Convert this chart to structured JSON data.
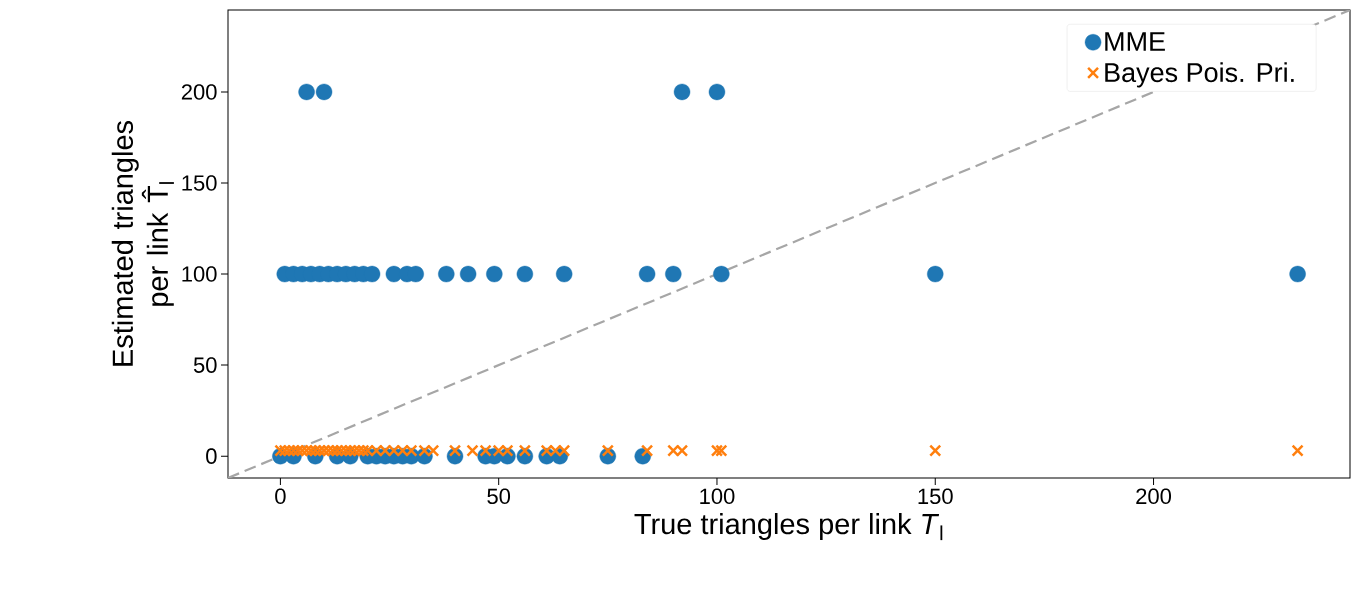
{
  "chart_data": {
    "type": "scatter",
    "xlabel": "True triangles per link *T*$_{l}$",
    "ylabel": "Estimated triangles per link T̂$_{l}$",
    "xlim": [
      -12,
      245
    ],
    "ylim": [
      -12,
      245
    ],
    "xticks": [
      0,
      50,
      100,
      150,
      200
    ],
    "yticks": [
      0,
      50,
      100,
      150,
      200
    ],
    "legend": "top right",
    "grid": false,
    "series": [
      {
        "type": "line",
        "color": "#a6a6a6",
        "line_style": "dashed",
        "marker": "none",
        "x": [
          -12,
          245
        ],
        "values": [
          -12,
          245
        ]
      },
      {
        "name": "MME",
        "color": "#1f77b4",
        "marker": "circle",
        "x": [
          6,
          10,
          92,
          100,
          1,
          3,
          5,
          7,
          9,
          11,
          13,
          15,
          17,
          19,
          21,
          26,
          29,
          31,
          38,
          43,
          49,
          56,
          65,
          84,
          90,
          101,
          150,
          233,
          0,
          3,
          8,
          13,
          16,
          20,
          22,
          24,
          26,
          28,
          30,
          33,
          40,
          47,
          49,
          52,
          56,
          61,
          64,
          75,
          83
        ],
        "values": [
          200,
          200,
          200,
          200,
          100,
          100,
          100,
          100,
          100,
          100,
          100,
          100,
          100,
          100,
          100,
          100,
          100,
          100,
          100,
          100,
          100,
          100,
          100,
          100,
          100,
          100,
          100,
          100,
          0,
          0,
          0,
          0,
          0,
          0,
          0,
          0,
          0,
          0,
          0,
          0,
          0,
          0,
          0,
          0,
          0,
          0,
          0,
          0,
          0
        ]
      },
      {
        "name": "Bayes Pois. Pri.",
        "color": "#ff7f0e",
        "marker": "cross",
        "x": [
          0,
          1,
          2,
          3,
          4,
          5,
          6,
          7,
          8,
          9,
          10,
          11,
          12,
          13,
          14,
          15,
          16,
          17,
          18,
          19,
          20,
          22,
          24,
          26,
          28,
          30,
          33,
          35,
          40,
          44,
          47,
          50,
          52,
          56,
          61,
          63,
          65,
          75,
          84,
          90,
          92,
          100,
          101,
          150,
          233
        ],
        "values": [
          3,
          3,
          3,
          3,
          3,
          3,
          3,
          3,
          3,
          3,
          3,
          3,
          3,
          3,
          3,
          3,
          3,
          3,
          3,
          3,
          3,
          3,
          3,
          3,
          3,
          3,
          3,
          3,
          3,
          3,
          3,
          3,
          3,
          3,
          3,
          3,
          3,
          3,
          3,
          3,
          3,
          3,
          3,
          3,
          3
        ]
      }
    ]
  }
}
